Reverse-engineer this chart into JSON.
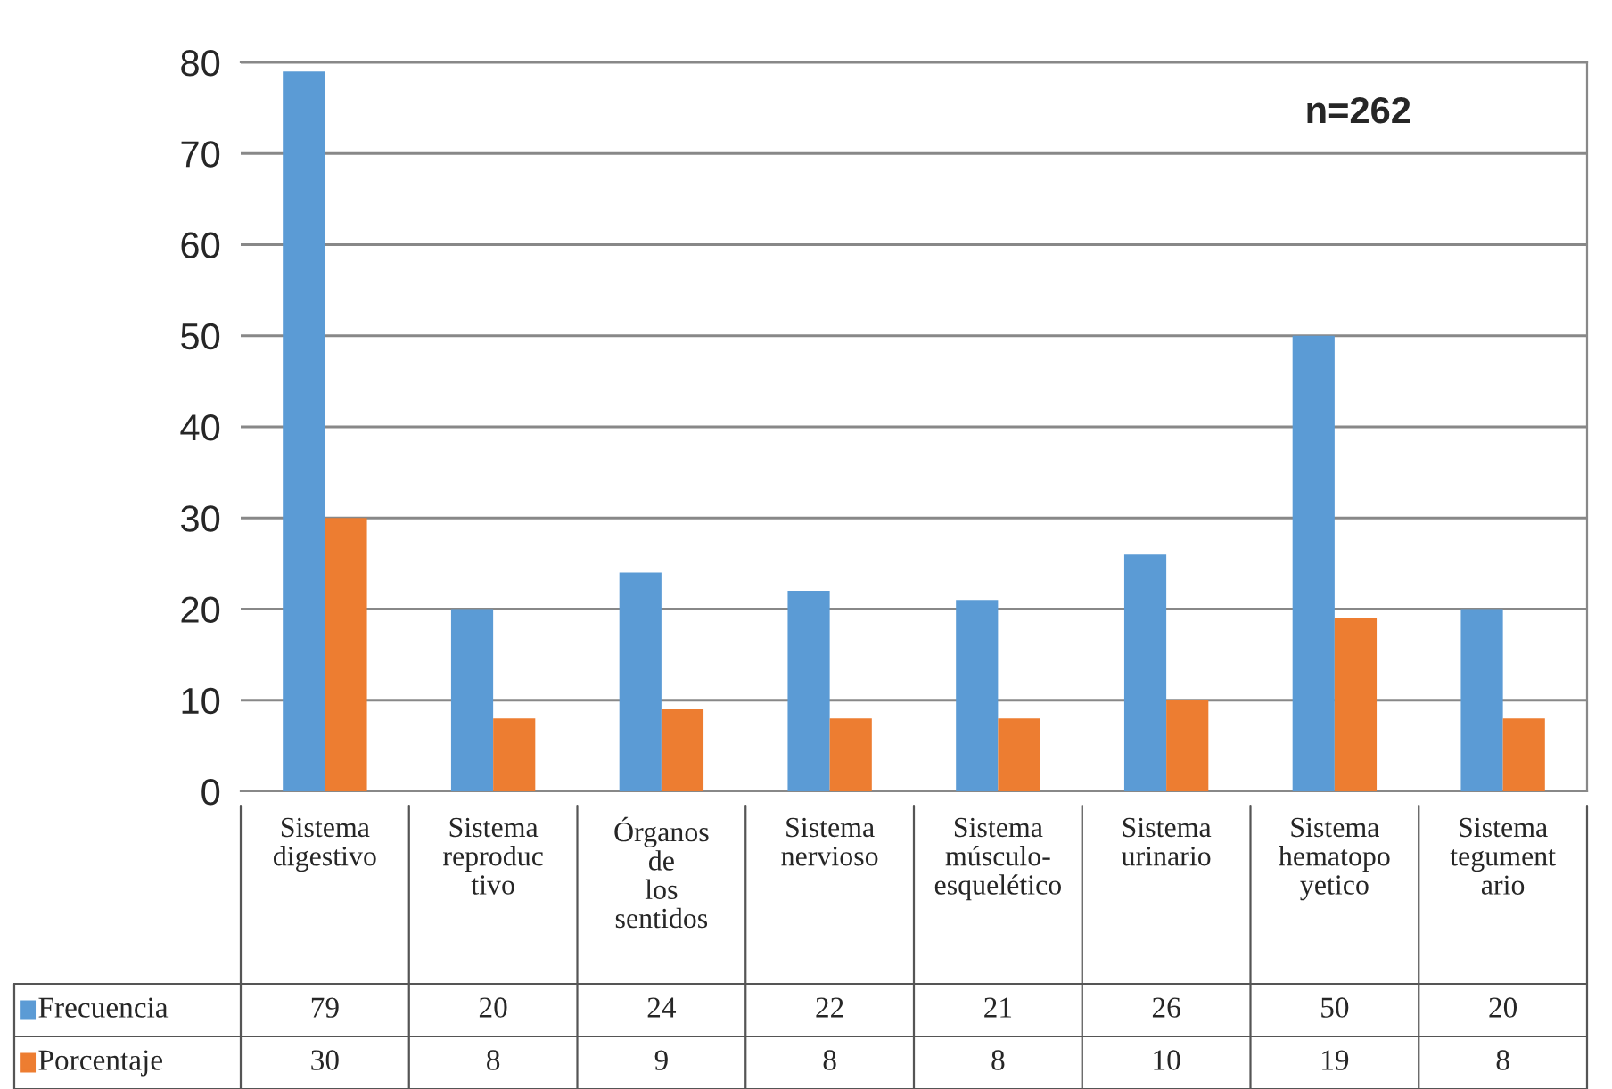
{
  "chart_data": {
    "type": "bar",
    "categories": [
      "Sistema digestivo",
      "Sistema reproductivo",
      "Órganos de los sentidos",
      "Sistema nervioso",
      "Sistema músculo-esquelético",
      "Sistema urinario",
      "Sistema hematopoyetico",
      "Sistema tegumentario"
    ],
    "series": [
      {
        "name": "Frecuencia",
        "color": "#5b9bd5",
        "values": [
          79,
          20,
          24,
          22,
          21,
          26,
          50,
          20
        ]
      },
      {
        "name": "Porcentaje",
        "color": "#ed7d31",
        "values": [
          30,
          8,
          9,
          8,
          8,
          10,
          19,
          8
        ]
      }
    ],
    "ylim": [
      0,
      80
    ],
    "yticks": [
      0,
      10,
      20,
      30,
      40,
      50,
      60,
      70,
      80
    ],
    "grid": "y",
    "legend": "bottom",
    "data_labels": true,
    "annotations": [
      "n=262"
    ]
  }
}
